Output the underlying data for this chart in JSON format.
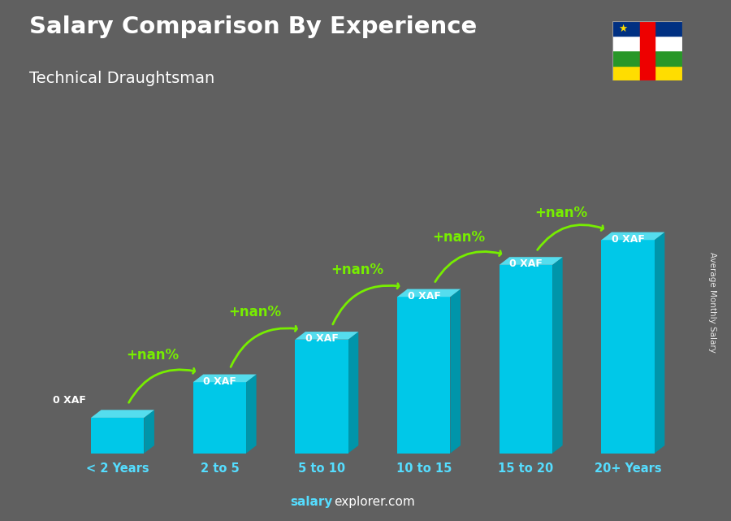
{
  "title": "Salary Comparison By Experience",
  "subtitle": "Technical Draughtsman",
  "categories": [
    "< 2 Years",
    "2 to 5",
    "5 to 10",
    "10 to 15",
    "15 to 20",
    "20+ Years"
  ],
  "values": [
    1.0,
    2.0,
    3.2,
    4.4,
    5.3,
    6.0
  ],
  "bar_label": "0 XAF",
  "increase_label": "+nan%",
  "bar_color_face": "#00C8E8",
  "bar_color_side": "#0095AA",
  "bar_color_top": "#55DDEE",
  "arrow_color": "#77EE00",
  "title_color": "#FFFFFF",
  "subtitle_color": "#FFFFFF",
  "xtick_color": "#55DDFF",
  "ylabel": "Average Monthly Salary",
  "footer_bold": "salary",
  "footer_normal": "explorer.com",
  "bg_color": "#606060",
  "ylim": [
    0,
    8.5
  ],
  "flag_colors": [
    "#003082",
    "#FFFFFF",
    "#289728",
    "#FFDD00"
  ],
  "flag_red": "#EE0000",
  "flag_star_color": "#FFDD00"
}
